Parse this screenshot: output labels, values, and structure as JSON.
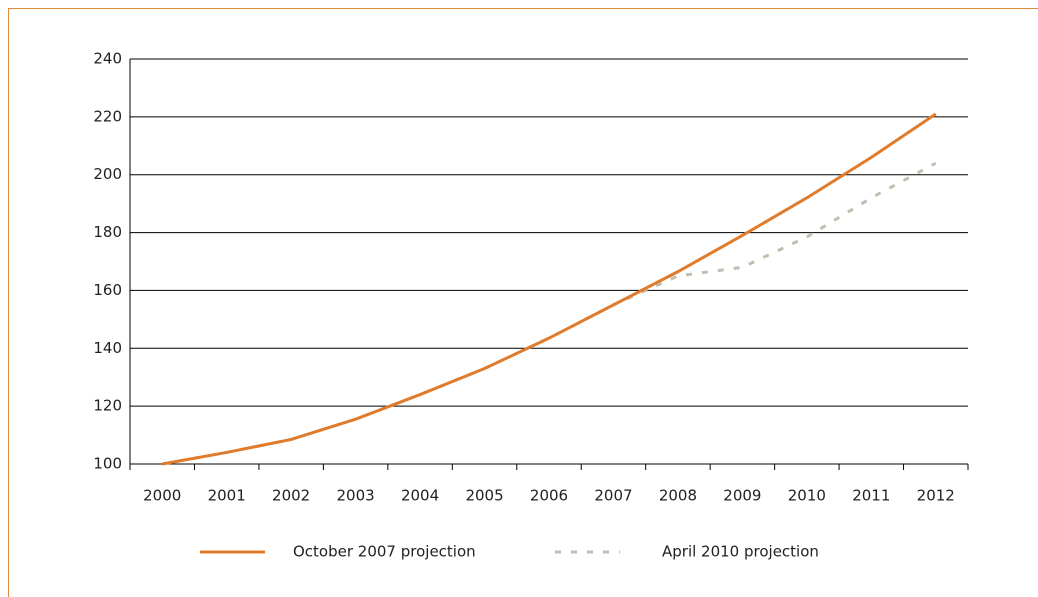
{
  "chart_data": {
    "type": "line",
    "categories": [
      "2000",
      "2001",
      "2002",
      "2003",
      "2004",
      "2005",
      "2006",
      "2007",
      "2008",
      "2009",
      "2010",
      "2011",
      "2012"
    ],
    "series": [
      {
        "name": "October 2007 projection",
        "color": "#e07b2b",
        "dash": false,
        "values": [
          100,
          104,
          108.5,
          115.5,
          124,
          133,
          143.5,
          155,
          166.5,
          179,
          192,
          206,
          221
        ]
      },
      {
        "name": "April 2010 projection",
        "color": "#c4bdb0",
        "dash": true,
        "values": [
          100,
          104,
          108.5,
          115.5,
          124,
          133,
          143.5,
          155,
          165,
          168,
          178.5,
          192,
          204
        ]
      }
    ],
    "ylim": [
      100,
      240
    ],
    "yticks": [
      100,
      120,
      140,
      160,
      180,
      200,
      220,
      240
    ],
    "grid": true,
    "legend": "bottom"
  }
}
